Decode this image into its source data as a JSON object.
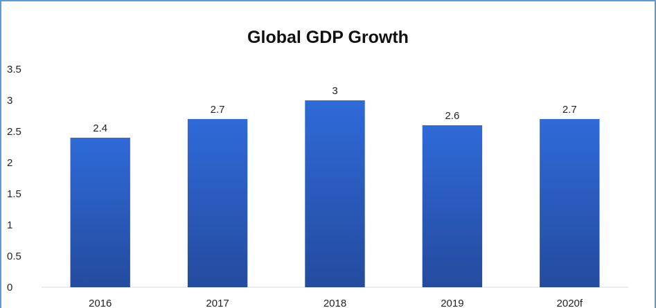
{
  "chart_data": {
    "type": "bar",
    "title": "Global GDP Growth",
    "xlabel": "",
    "ylabel": "",
    "categories": [
      "2016",
      "2017",
      "2018",
      "2019",
      "2020f"
    ],
    "values": [
      2.4,
      2.7,
      3,
      2.6,
      2.7
    ],
    "data_labels": [
      "2.4",
      "2.7",
      "3",
      "2.6",
      "2.7"
    ],
    "ylim": [
      0,
      3.5
    ],
    "yticks": [
      "0",
      "0.5",
      "1",
      "1.5",
      "2",
      "2.5",
      "3",
      "3.5"
    ],
    "grid": false,
    "legend": "none",
    "bar_color_top": "#2f6ad8",
    "bar_color_bottom": "#244b9e",
    "border_color": "#5b9bd5"
  }
}
